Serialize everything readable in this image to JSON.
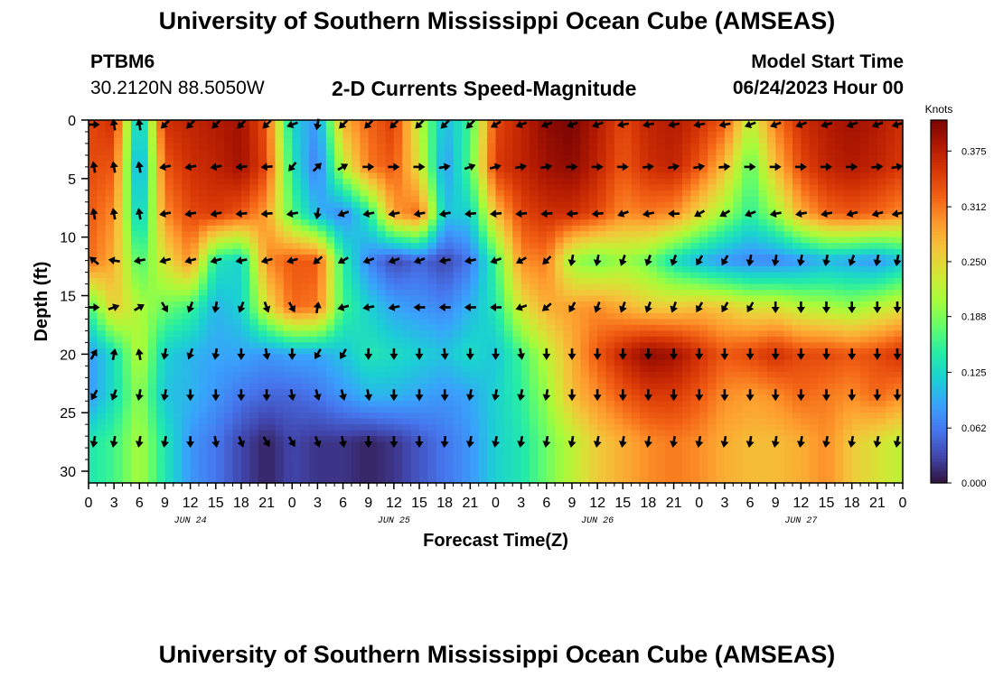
{
  "header": {
    "title": "University of Southern Mississippi Ocean Cube (AMSEAS)",
    "station": "PTBM6",
    "coords": "30.2120N  88.5050W",
    "chart_title": "2-D Currents Speed-Magnitude",
    "model_start_label": "Model Start Time",
    "model_start_value": "06/24/2023 Hour 00"
  },
  "footer": {
    "title": "University of Southern Mississippi Ocean Cube (AMSEAS)"
  },
  "chart_data": {
    "type": "heatmap",
    "title": "2-D Currents Speed-Magnitude",
    "xlabel": "Forecast Time(Z)",
    "ylabel": "Depth (ft)",
    "x_tick_labels": [
      "0",
      "3",
      "6",
      "9",
      "12",
      "15",
      "18",
      "21",
      "0",
      "3",
      "6",
      "9",
      "12",
      "15",
      "18",
      "21",
      "0",
      "3",
      "6",
      "9",
      "12",
      "15",
      "18",
      "21",
      "0",
      "3",
      "6",
      "9",
      "12",
      "15",
      "18",
      "21",
      "0"
    ],
    "date_labels": [
      {
        "label": "JUN 24",
        "hour_index": 12
      },
      {
        "label": "JUN 25",
        "hour_index": 36
      },
      {
        "label": "JUN 26",
        "hour_index": 60
      },
      {
        "label": "JUN 27",
        "hour_index": 84
      }
    ],
    "x_range_hours": [
      0,
      96
    ],
    "y_ticks": [
      0,
      5,
      10,
      15,
      20,
      25,
      30
    ],
    "y_range": [
      0,
      31
    ],
    "colorbar": {
      "unit": "Knots",
      "ticks": [
        "0.000",
        "0.062",
        "0.125",
        "0.188",
        "0.250",
        "0.312",
        "0.375"
      ],
      "range": [
        0,
        0.41
      ],
      "colors": [
        "#30123b",
        "#4145ab",
        "#4675ed",
        "#39a2fc",
        "#1bcfd4",
        "#24eca6",
        "#61fc6c",
        "#a4fc3b",
        "#d1e834",
        "#f3c63a",
        "#fe9b2d",
        "#f36315",
        "#d93806",
        "#b11901",
        "#7a0403"
      ]
    },
    "depth_levels_ft": [
      0,
      4,
      8,
      12,
      16,
      20,
      23.5,
      27.5
    ],
    "speed_knots": [
      [
        0.34,
        0.36,
        0.09,
        0.36,
        0.37,
        0.38,
        0.39,
        0.33,
        0.12,
        0.08,
        0.28,
        0.32,
        0.35,
        0.22,
        0.1,
        0.16,
        0.34,
        0.37,
        0.4,
        0.41,
        0.38,
        0.34,
        0.37,
        0.38,
        0.36,
        0.33,
        0.22,
        0.31,
        0.36,
        0.38,
        0.39,
        0.38,
        0.36
      ],
      [
        0.34,
        0.33,
        0.07,
        0.33,
        0.36,
        0.37,
        0.39,
        0.34,
        0.14,
        0.06,
        0.22,
        0.31,
        0.33,
        0.24,
        0.08,
        0.17,
        0.35,
        0.37,
        0.39,
        0.4,
        0.37,
        0.33,
        0.36,
        0.37,
        0.33,
        0.27,
        0.17,
        0.27,
        0.34,
        0.37,
        0.38,
        0.37,
        0.35
      ],
      [
        0.33,
        0.3,
        0.1,
        0.3,
        0.34,
        0.35,
        0.33,
        0.29,
        0.17,
        0.1,
        0.07,
        0.14,
        0.29,
        0.32,
        0.11,
        0.12,
        0.27,
        0.34,
        0.36,
        0.36,
        0.34,
        0.3,
        0.31,
        0.3,
        0.25,
        0.2,
        0.15,
        0.2,
        0.28,
        0.32,
        0.33,
        0.32,
        0.3
      ],
      [
        0.32,
        0.28,
        0.16,
        0.24,
        0.3,
        0.14,
        0.12,
        0.3,
        0.33,
        0.33,
        0.15,
        0.07,
        0.03,
        0.05,
        0.03,
        0.06,
        0.16,
        0.3,
        0.31,
        0.2,
        0.18,
        0.2,
        0.18,
        0.13,
        0.1,
        0.08,
        0.07,
        0.07,
        0.08,
        0.1,
        0.09,
        0.08,
        0.11
      ],
      [
        0.16,
        0.26,
        0.21,
        0.18,
        0.16,
        0.1,
        0.12,
        0.24,
        0.32,
        0.31,
        0.16,
        0.12,
        0.09,
        0.08,
        0.07,
        0.1,
        0.14,
        0.24,
        0.28,
        0.29,
        0.3,
        0.28,
        0.26,
        0.26,
        0.27,
        0.26,
        0.24,
        0.24,
        0.22,
        0.21,
        0.2,
        0.22,
        0.24
      ],
      [
        0.08,
        0.13,
        0.22,
        0.12,
        0.1,
        0.09,
        0.09,
        0.08,
        0.09,
        0.09,
        0.11,
        0.14,
        0.13,
        0.12,
        0.11,
        0.13,
        0.11,
        0.16,
        0.22,
        0.28,
        0.33,
        0.37,
        0.4,
        0.39,
        0.36,
        0.33,
        0.34,
        0.36,
        0.34,
        0.34,
        0.33,
        0.34,
        0.36
      ],
      [
        0.08,
        0.13,
        0.2,
        0.11,
        0.1,
        0.08,
        0.06,
        0.05,
        0.05,
        0.06,
        0.08,
        0.1,
        0.1,
        0.09,
        0.08,
        0.09,
        0.12,
        0.15,
        0.2,
        0.27,
        0.3,
        0.33,
        0.35,
        0.35,
        0.33,
        0.3,
        0.29,
        0.3,
        0.32,
        0.31,
        0.3,
        0.32,
        0.3
      ],
      [
        0.14,
        0.16,
        0.21,
        0.14,
        0.08,
        0.06,
        0.03,
        0.01,
        0.03,
        0.02,
        0.02,
        0.01,
        0.02,
        0.04,
        0.06,
        0.08,
        0.12,
        0.14,
        0.18,
        0.22,
        0.26,
        0.28,
        0.3,
        0.31,
        0.3,
        0.28,
        0.27,
        0.27,
        0.28,
        0.3,
        0.26,
        0.24,
        0.22
      ]
    ],
    "arrow_angles_deg": [
      [
        0,
        100,
        100,
        -135,
        -135,
        -135,
        -135,
        -135,
        -160,
        -100,
        -135,
        -135,
        -135,
        -135,
        -135,
        -135,
        -150,
        -160,
        -160,
        -160,
        -160,
        -170,
        -170,
        -170,
        -170,
        -170,
        -160,
        -160,
        -160,
        -165,
        -160,
        -160,
        -165
      ],
      [
        100,
        100,
        100,
        -170,
        -170,
        -170,
        -175,
        -175,
        -130,
        45,
        30,
        0,
        0,
        0,
        10,
        20,
        15,
        10,
        10,
        0,
        0,
        0,
        5,
        10,
        10,
        5,
        0,
        0,
        0,
        0,
        0,
        5,
        10
      ],
      [
        100,
        100,
        100,
        -170,
        -170,
        -170,
        -175,
        -175,
        -170,
        -100,
        -160,
        -170,
        -170,
        -170,
        -170,
        -175,
        -175,
        -175,
        -175,
        -175,
        -175,
        -160,
        -170,
        -180,
        -150,
        -150,
        -160,
        -170,
        -170,
        -170,
        -165,
        -165,
        -170
      ],
      [
        140,
        170,
        -170,
        -165,
        -165,
        -165,
        -170,
        -165,
        -165,
        -140,
        -150,
        -160,
        -160,
        -160,
        -170,
        -170,
        -160,
        -150,
        -135,
        -100,
        -100,
        -110,
        -110,
        -110,
        -120,
        -120,
        -100,
        -100,
        -100,
        -100,
        -110,
        -100,
        -100
      ],
      [
        0,
        20,
        30,
        -60,
        -110,
        -100,
        -110,
        -70,
        -60,
        80,
        -165,
        -170,
        -170,
        -180,
        -180,
        -180,
        -180,
        -160,
        -140,
        -120,
        -110,
        -110,
        -110,
        -110,
        -120,
        -120,
        -120,
        -90,
        -90,
        -90,
        -90,
        -90,
        -90
      ],
      [
        60,
        80,
        100,
        -100,
        -110,
        -100,
        -90,
        -80,
        -90,
        -120,
        -120,
        -90,
        -90,
        -90,
        -85,
        -90,
        -90,
        -80,
        -90,
        -90,
        -90,
        -90,
        -90,
        -90,
        -90,
        -90,
        -90,
        -90,
        -90,
        -90,
        -90,
        -90,
        -90
      ],
      [
        -120,
        -110,
        -100,
        -100,
        -90,
        -90,
        -90,
        -90,
        -80,
        -75,
        -75,
        -80,
        -90,
        -90,
        -90,
        -100,
        -100,
        -100,
        -100,
        -90,
        -90,
        -90,
        -90,
        -90,
        -90,
        -90,
        -90,
        -90,
        -90,
        -90,
        -90,
        -90,
        -90
      ],
      [
        -100,
        -100,
        -100,
        -100,
        -90,
        -80,
        -70,
        -60,
        -60,
        -70,
        -80,
        -90,
        -90,
        -90,
        -95,
        -100,
        -100,
        -100,
        -100,
        -100,
        -100,
        -100,
        -100,
        -100,
        -100,
        -100,
        -100,
        -100,
        -100,
        -100,
        -100,
        -100,
        -100
      ]
    ]
  }
}
